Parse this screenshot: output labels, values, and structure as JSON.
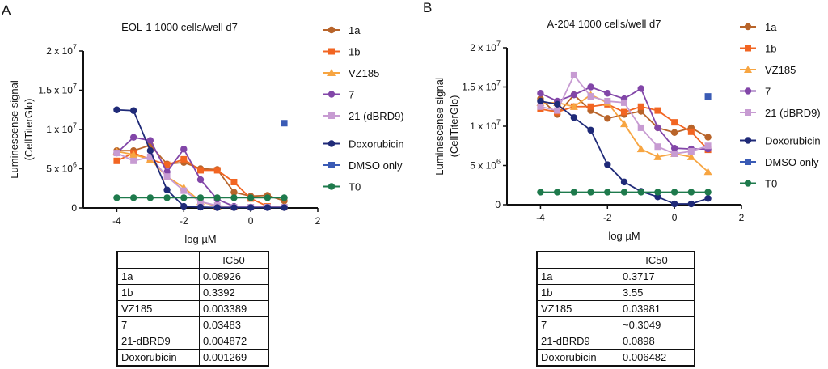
{
  "chart_data": [
    {
      "panel_label": "A",
      "type": "line",
      "title": "EOL-1 1000 cells/well d7",
      "xlabel": "log µM",
      "ylabel": [
        "Luminescense signal",
        "(CellTiterGlo)"
      ],
      "xlim": [
        -5,
        2
      ],
      "ylim": [
        0,
        20000000
      ],
      "xticks": [
        "-4",
        "-2",
        "0",
        "2"
      ],
      "yticks": [
        {
          "v": 0,
          "label": "0",
          "exp": ""
        },
        {
          "v": 5000000,
          "label": "5 x 10",
          "exp": "6"
        },
        {
          "v": 10000000,
          "label": "1 x 10",
          "exp": "7"
        },
        {
          "v": 15000000,
          "label": "1.5 x 10",
          "exp": "7"
        },
        {
          "v": 20000000,
          "label": "2 x 10",
          "exp": "7"
        }
      ],
      "legend_position": "right",
      "x": [
        -4,
        -3.5,
        -3,
        -2.5,
        -2,
        -1.5,
        -1,
        -0.5,
        0,
        0.5,
        1
      ],
      "y_unit": 1000000,
      "series": [
        {
          "name": "1a",
          "color": "#b8642a",
          "marker": "circle",
          "values": [
            7.3,
            7.3,
            8.0,
            5.6,
            5.8,
            5.0,
            4.9,
            2.0,
            1.5,
            1.6,
            0.9
          ]
        },
        {
          "name": "1b",
          "color": "#f26522",
          "marker": "square",
          "values": [
            6.0,
            7.0,
            6.2,
            5.5,
            6.2,
            4.8,
            4.8,
            3.3,
            1.2,
            0.2,
            0.1
          ]
        },
        {
          "name": "VZ185",
          "color": "#f7a541",
          "marker": "triangle",
          "values": [
            7.2,
            6.8,
            6.2,
            4.0,
            2.6,
            0.8,
            0.2,
            0.2,
            0.1,
            0.1,
            0.1
          ]
        },
        {
          "name": "7",
          "color": "#8246a8",
          "marker": "circle",
          "values": [
            7.0,
            9.0,
            8.6,
            4.6,
            7.5,
            3.6,
            1.1,
            0.2,
            0.1,
            0.1,
            0.1
          ]
        },
        {
          "name": "21 (dBRD9)",
          "color": "#c79bd2",
          "marker": "square",
          "values": [
            7.0,
            6.0,
            6.5,
            4.0,
            2.2,
            0.8,
            0.3,
            0.1,
            0.1,
            0.1,
            0.1
          ]
        },
        {
          "name": "Doxorubicin",
          "color": "#1f2a78",
          "marker": "circle",
          "values": [
            12.5,
            12.4,
            7.3,
            2.3,
            0.2,
            0.1,
            0.05,
            0.05,
            0.05,
            0.05,
            0.05
          ]
        },
        {
          "name": "DMSO only",
          "color": "#3a5bb5",
          "marker": "square",
          "values": [
            null,
            null,
            null,
            null,
            null,
            null,
            null,
            null,
            null,
            null,
            10.8
          ]
        },
        {
          "name": "T0",
          "color": "#1e7a4c",
          "marker": "circle",
          "values": [
            1.3,
            1.3,
            1.3,
            1.3,
            1.3,
            1.3,
            1.3,
            1.3,
            1.3,
            1.3,
            1.3
          ]
        }
      ],
      "table": {
        "header": [
          "",
          "IC50"
        ],
        "rows": [
          [
            "1a",
            "0.08926"
          ],
          [
            "1b",
            "0.3392"
          ],
          [
            "VZ185",
            "0.003389"
          ],
          [
            "7",
            "0.03483"
          ],
          [
            "21-dBRD9",
            "0.004872"
          ],
          [
            "Doxorubicin",
            "0.001269"
          ]
        ]
      }
    },
    {
      "panel_label": "B",
      "type": "line",
      "title": "A-204 1000 cells/well d7",
      "xlabel": "log µM",
      "ylabel": [
        "Luminescense signal",
        "(CellTiterGlo)"
      ],
      "xlim": [
        -5,
        2
      ],
      "ylim": [
        0,
        20000000
      ],
      "xticks": [
        "-4",
        "-2",
        "0",
        "2"
      ],
      "yticks": [
        {
          "v": 0,
          "label": "0",
          "exp": ""
        },
        {
          "v": 5000000,
          "label": "5 x 10",
          "exp": "6"
        },
        {
          "v": 10000000,
          "label": "1 x 10",
          "exp": "7"
        },
        {
          "v": 15000000,
          "label": "1.5 x 10",
          "exp": "7"
        },
        {
          "v": 20000000,
          "label": "2 x 10",
          "exp": "7"
        }
      ],
      "legend_position": "right",
      "x": [
        -4,
        -3.5,
        -3,
        -2.5,
        -2,
        -1.5,
        -1,
        -0.5,
        0,
        0.5,
        1
      ],
      "y_unit": 1000000,
      "series": [
        {
          "name": "1a",
          "color": "#b8642a",
          "marker": "circle",
          "values": [
            13.5,
            11.5,
            14.0,
            12.0,
            11.0,
            11.5,
            11.9,
            9.8,
            9.2,
            9.8,
            8.6
          ]
        },
        {
          "name": "1b",
          "color": "#f26522",
          "marker": "square",
          "values": [
            12.2,
            11.8,
            12.5,
            12.5,
            12.8,
            11.8,
            12.5,
            12.0,
            10.5,
            9.3,
            7.0
          ]
        },
        {
          "name": "VZ185",
          "color": "#f7a541",
          "marker": "triangle",
          "values": [
            13.0,
            13.0,
            12.5,
            14.0,
            13.0,
            10.3,
            7.1,
            6.1,
            6.5,
            6.1,
            4.2
          ]
        },
        {
          "name": "7",
          "color": "#8246a8",
          "marker": "circle",
          "values": [
            14.2,
            13.2,
            14.0,
            15.0,
            14.2,
            13.5,
            14.8,
            9.8,
            7.2,
            7.1,
            7.1
          ]
        },
        {
          "name": "21 (dBRD9)",
          "color": "#c79bd2",
          "marker": "square",
          "values": [
            12.5,
            12.0,
            16.5,
            13.8,
            13.2,
            13.0,
            9.8,
            7.4,
            6.5,
            6.8,
            7.5
          ]
        },
        {
          "name": "Doxorubicin",
          "color": "#1f2a78",
          "marker": "circle",
          "values": [
            13.2,
            12.8,
            11.1,
            9.5,
            5.1,
            2.9,
            1.7,
            1.0,
            0.1,
            0.1,
            0.8
          ]
        },
        {
          "name": "DMSO only",
          "color": "#3a5bb5",
          "marker": "square",
          "values": [
            null,
            null,
            null,
            null,
            null,
            null,
            null,
            null,
            null,
            null,
            13.8
          ]
        },
        {
          "name": "T0",
          "color": "#1e7a4c",
          "marker": "circle",
          "values": [
            1.6,
            1.6,
            1.6,
            1.6,
            1.6,
            1.6,
            1.6,
            1.6,
            1.6,
            1.6,
            1.6
          ]
        }
      ],
      "table": {
        "header": [
          "",
          "IC50"
        ],
        "rows": [
          [
            "1a",
            "0.3717"
          ],
          [
            "1b",
            "3.55"
          ],
          [
            "VZ185",
            "0.03981"
          ],
          [
            "7",
            "~0.3049"
          ],
          [
            "21-dBRD9",
            "0.0898"
          ],
          [
            "Doxorubicin",
            "0.006482"
          ]
        ]
      }
    }
  ]
}
